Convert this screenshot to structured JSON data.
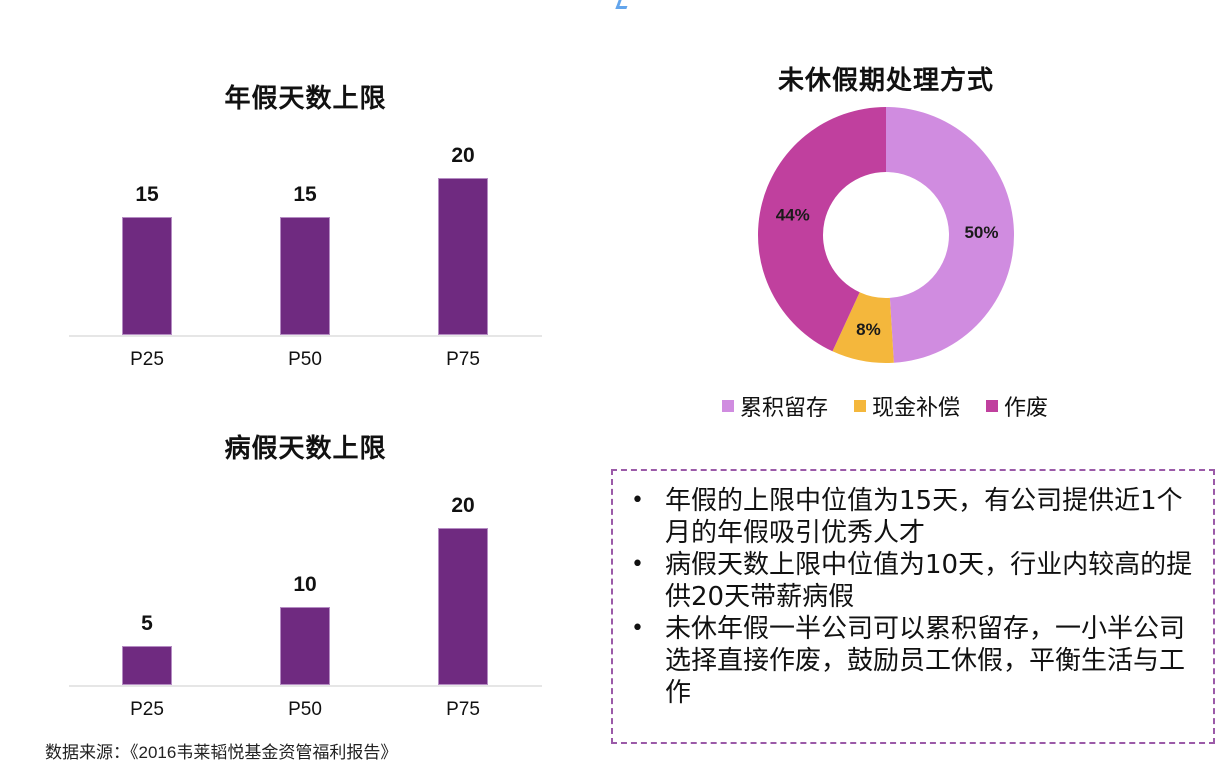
{
  "colors": {
    "bar": "#6f2a80",
    "accumulate": "#d08ce0",
    "cash": "#f4b73c",
    "forfeit": "#c0409e",
    "note_border": "#9b5aa8"
  },
  "chart_data": [
    {
      "type": "bar",
      "title": "年假天数上限",
      "categories": [
        "P25",
        "P50",
        "P75"
      ],
      "values": [
        15,
        15,
        20
      ],
      "xlabel": "",
      "ylabel": "",
      "grid": false,
      "legend": null,
      "ylim": [
        0,
        20
      ]
    },
    {
      "type": "bar",
      "title": "病假天数上限",
      "categories": [
        "P25",
        "P50",
        "P75"
      ],
      "values": [
        5,
        10,
        20
      ],
      "xlabel": "",
      "ylabel": "",
      "grid": false,
      "legend": null,
      "ylim": [
        0,
        20
      ]
    },
    {
      "type": "pie",
      "subtype": "donut",
      "title": "未休假期处理方式",
      "categories": [
        "累积留存",
        "现金补偿",
        "作废"
      ],
      "values": [
        50,
        8,
        44
      ],
      "value_labels": [
        "50%",
        "8%",
        "44%"
      ],
      "legend_position": "bottom"
    }
  ],
  "annual_chart": {
    "title": "年假天数上限",
    "bars": [
      {
        "label": "P25",
        "value": 15,
        "value_text": "15"
      },
      {
        "label": "P50",
        "value": 15,
        "value_text": "15"
      },
      {
        "label": "P75",
        "value": 20,
        "value_text": "20"
      }
    ]
  },
  "sick_chart": {
    "title": "病假天数上限",
    "bars": [
      {
        "label": "P25",
        "value": 5,
        "value_text": "5"
      },
      {
        "label": "P50",
        "value": 10,
        "value_text": "10"
      },
      {
        "label": "P75",
        "value": 20,
        "value_text": "20"
      }
    ]
  },
  "donut_chart": {
    "title": "未休假期处理方式",
    "slices": [
      {
        "label": "累积留存",
        "value": 50,
        "value_text": "50%",
        "color": "#d08ce0"
      },
      {
        "label": "现金补偿",
        "value": 8,
        "value_text": "8%",
        "color": "#f4b73c"
      },
      {
        "label": "作废",
        "value": 44,
        "value_text": "44%",
        "color": "#c0409e"
      }
    ]
  },
  "notes": {
    "items": [
      {
        "bullet": "•",
        "text": "年假的上限中位值为15天，有公司提供近1个月的年假吸引优秀人才"
      },
      {
        "bullet": "•",
        "text": "病假天数上限中位值为10天，行业内较高的提供20天带薪病假"
      },
      {
        "bullet": "•",
        "text": "未休年假一半公司可以累积留存，一小半公司选择直接作废，鼓励员工休假，平衡生活与工作"
      }
    ]
  },
  "source": {
    "text": "数据来源：《2016韦莱韬悦基金资管福利报告》"
  }
}
